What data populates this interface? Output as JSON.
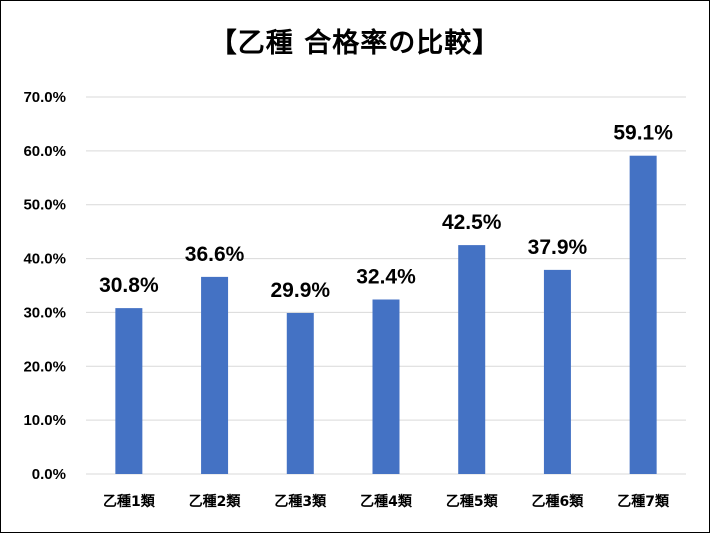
{
  "chart_data": {
    "type": "bar",
    "title": "【乙種 合格率の比較】",
    "xlabel": "",
    "ylabel": "",
    "categories": [
      "乙種1類",
      "乙種2類",
      "乙種3類",
      "乙種4類",
      "乙種5類",
      "乙種6類",
      "乙種7類"
    ],
    "values": [
      30.8,
      36.6,
      29.9,
      32.4,
      42.5,
      37.9,
      59.1
    ],
    "data_labels": [
      "30.8%",
      "36.6%",
      "29.9%",
      "32.4%",
      "42.5%",
      "37.9%",
      "59.1%"
    ],
    "ylim": [
      0,
      70
    ],
    "yticks": [
      0,
      10,
      20,
      30,
      40,
      50,
      60,
      70
    ],
    "ytick_labels": [
      "0.0%",
      "10.0%",
      "20.0%",
      "30.0%",
      "40.0%",
      "50.0%",
      "60.0%",
      "70.0%"
    ],
    "grid": true,
    "legend": "none",
    "bar_color": "#4472C4",
    "grid_color": "#D9D9D9"
  }
}
